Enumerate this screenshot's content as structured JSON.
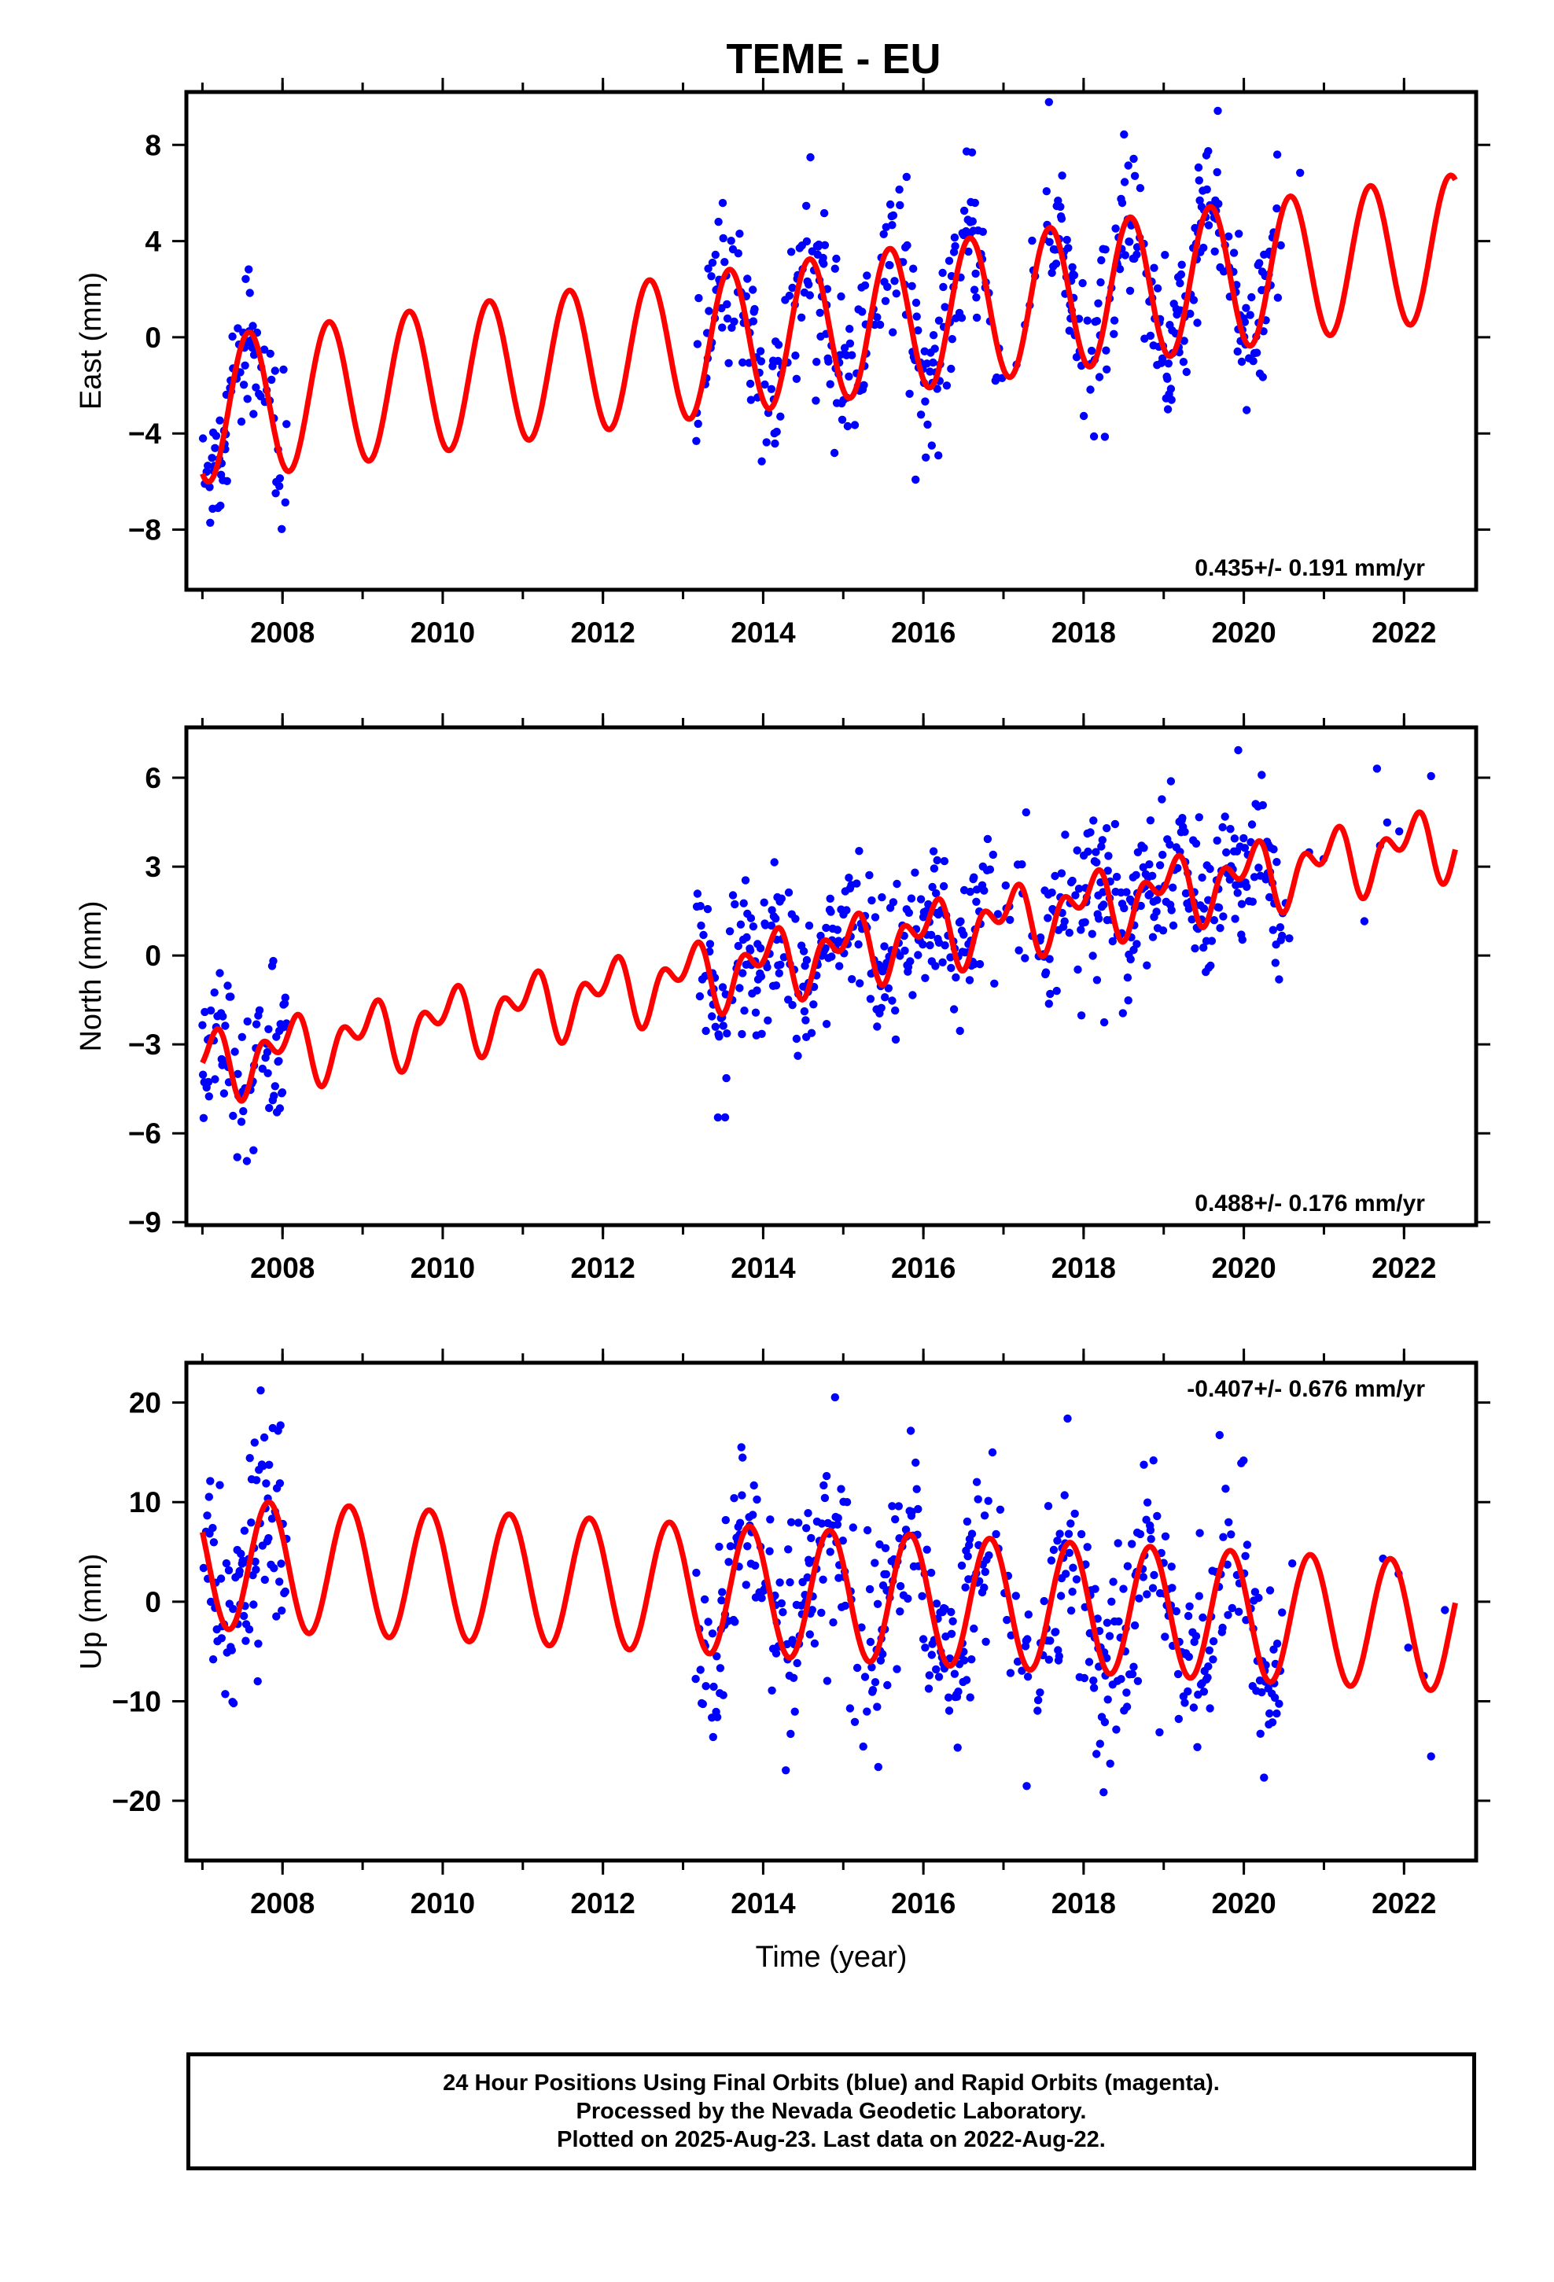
{
  "chart_data": [
    {
      "type": "scatter",
      "panel": "east",
      "title": "TEME - EU",
      "xlabel": "",
      "ylabel": "East (mm)",
      "xlim": [
        2006.8,
        2022.9
      ],
      "ylim": [
        -10.5,
        10.2
      ],
      "xticks": [
        2008,
        2010,
        2012,
        2014,
        2016,
        2018,
        2020,
        2022
      ],
      "yticks": [
        -8,
        -4,
        0,
        4,
        8
      ],
      "rate_text": "0.435+/- 0.191 mm/yr",
      "model": {
        "slope": 0.435,
        "offset": 0.0,
        "ref_year": 2014.0,
        "amp1": 3.0,
        "phase1": 0.33,
        "amp2": 0.0,
        "phase2": 0.0
      },
      "gaps": [
        [
          2008.05,
          2013.15
        ]
      ],
      "data_span": [
        2007.0,
        2022.64
      ],
      "noise": 1.6,
      "density": 1.0,
      "marker_color": "#0000ff",
      "line_color": "#ff0000"
    },
    {
      "type": "scatter",
      "panel": "north",
      "title": "",
      "xlabel": "",
      "ylabel": "North (mm)",
      "xlim": [
        2006.8,
        2022.9
      ],
      "ylim": [
        -9.1,
        7.7
      ],
      "xticks": [
        2008,
        2010,
        2012,
        2014,
        2016,
        2018,
        2020,
        2022
      ],
      "yticks": [
        -9,
        -6,
        -3,
        0,
        3,
        6
      ],
      "rate_text": "0.488+/- 0.176 mm/yr",
      "model": {
        "slope": 0.488,
        "offset": -0.3,
        "ref_year": 2014.0,
        "amp1": 0.8,
        "phase1": 0.8,
        "amp2": 0.7,
        "phase2": 0.1
      },
      "gaps": [
        [
          2008.05,
          2013.15
        ]
      ],
      "data_span": [
        2007.0,
        2022.64
      ],
      "noise": 1.3,
      "density": 1.0,
      "marker_color": "#0000ff",
      "line_color": "#ff0000"
    },
    {
      "type": "scatter",
      "panel": "up",
      "title": "",
      "xlabel": "Time (year)",
      "ylabel": "Up (mm)",
      "xlim": [
        2006.8,
        2022.9
      ],
      "ylim": [
        -26,
        24
      ],
      "xticks": [
        2008,
        2010,
        2012,
        2014,
        2016,
        2018,
        2020,
        2022
      ],
      "yticks": [
        -20,
        -10,
        0,
        10,
        20
      ],
      "rate_text": "-0.407+/- 0.676 mm/yr",
      "model": {
        "slope": -0.407,
        "offset": 1.0,
        "ref_year": 2014.0,
        "amp1": 6.5,
        "phase1": 0.58,
        "amp2": 0.0,
        "phase2": 0.0
      },
      "gaps": [
        [
          2008.05,
          2013.15
        ]
      ],
      "data_span": [
        2007.0,
        2022.64
      ],
      "noise": 5.0,
      "density": 1.0,
      "marker_color": "#0000ff",
      "line_color": "#ff0000"
    }
  ],
  "footer": {
    "line1": "24 Hour Positions Using Final Orbits (blue) and Rapid Orbits (magenta).",
    "line2": "Processed by the Nevada Geodetic Laboratory.",
    "line3": "Plotted on 2025-Aug-23. Last data on 2022-Aug-22."
  }
}
